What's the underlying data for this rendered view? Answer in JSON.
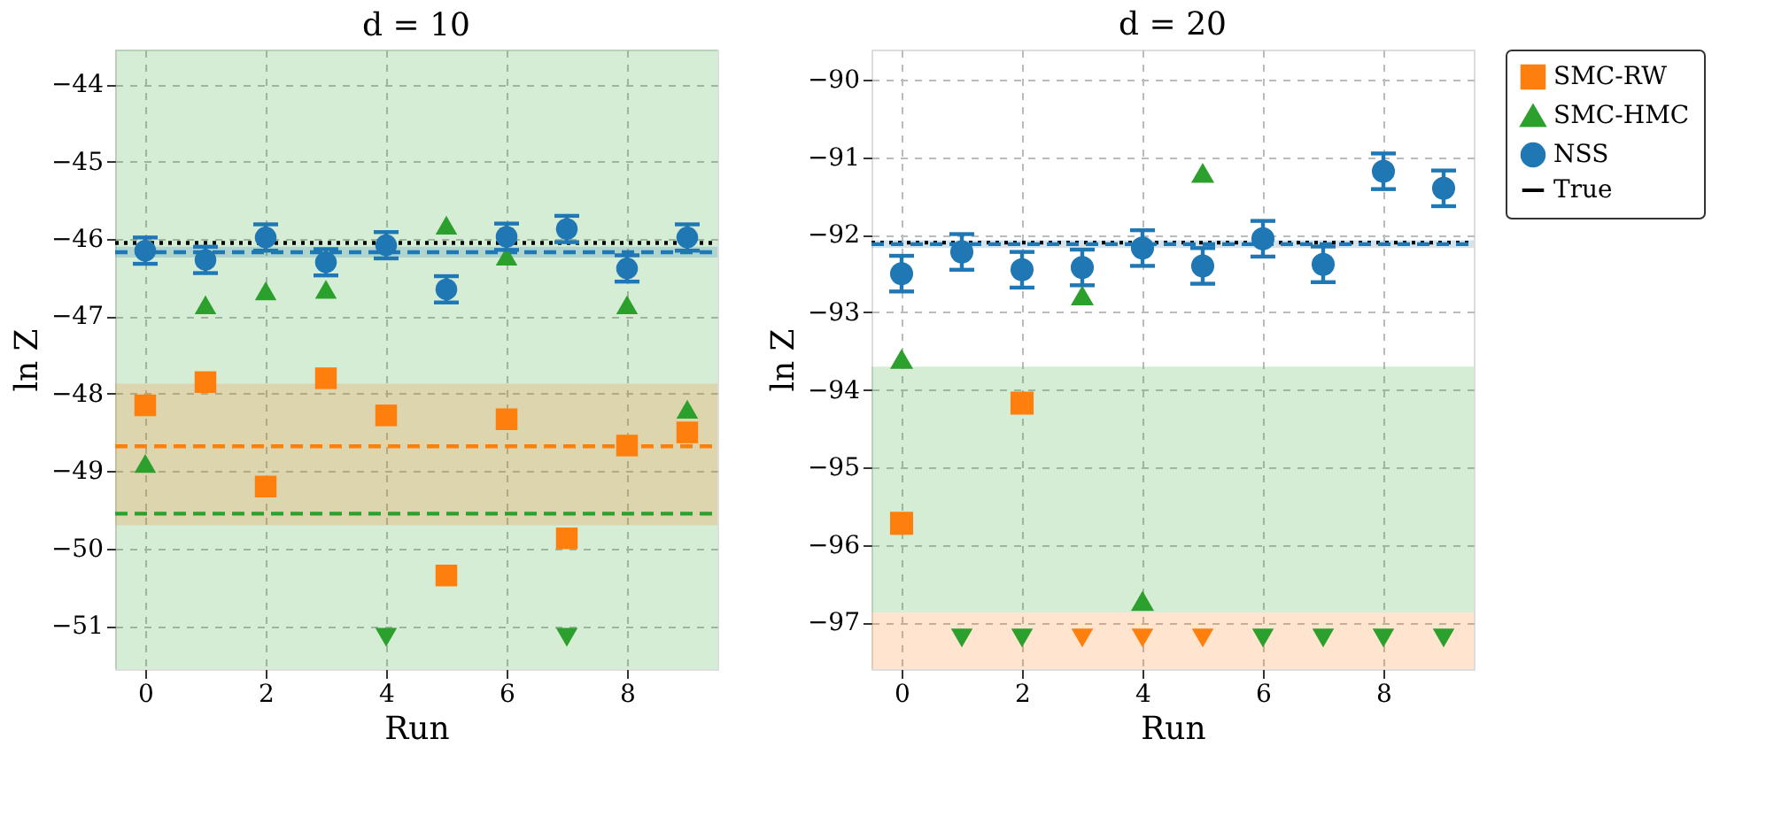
{
  "chart_data": [
    {
      "type": "scatter",
      "title": "d = 10",
      "xlabel": "Run",
      "ylabel": "ln Z",
      "x": [
        0,
        1,
        2,
        3,
        4,
        5,
        6,
        7,
        8,
        9
      ],
      "xlim": [
        -0.5,
        9.5
      ],
      "xticks": [
        0,
        2,
        4,
        6,
        8
      ],
      "ylim": [
        -51.56,
        -43.55
      ],
      "yticks": [
        -51,
        -50,
        -49,
        -48,
        -47,
        -46,
        -45,
        -44
      ],
      "grid": true,
      "legend": false,
      "series": [
        {
          "color": "#ff7f0e",
          "marker": "square",
          "values": [
            -48.15,
            -47.85,
            -49.2,
            -47.8,
            -48.28,
            -50.35,
            -48.33,
            -49.87,
            -48.67,
            -48.5
          ]
        },
        {
          "color": "#2ca02c",
          "marker": "triangle",
          "values": [
            -48.9,
            -46.85,
            -46.67,
            -46.65,
            null,
            -45.82,
            -46.22,
            null,
            -46.85,
            -48.2
          ]
        },
        {
          "color": "#2ca02c",
          "marker": "triangle-down",
          "values": [
            null,
            null,
            null,
            null,
            -51.15,
            null,
            null,
            -51.15,
            null,
            null
          ]
        },
        {
          "color": "#1f77b4",
          "marker": "circle",
          "values": [
            -46.15,
            -46.27,
            -45.98,
            -46.3,
            -46.08,
            -46.65,
            -45.97,
            -45.87,
            -46.38,
            -45.98
          ],
          "errors": [
            0.17,
            0.17,
            0.17,
            0.17,
            0.17,
            0.17,
            0.17,
            0.17,
            0.17,
            0.17
          ]
        }
      ],
      "ref_lines": [
        {
          "axis": "y",
          "value": -46.05,
          "color": "#000000",
          "line_style": "dotted"
        },
        {
          "axis": "y",
          "value": -46.17,
          "color": "#1f77b4",
          "line_style": "dashed"
        },
        {
          "axis": "y",
          "value": -48.68,
          "color": "#ff7f0e",
          "line_style": "dashed"
        },
        {
          "axis": "y",
          "value": -49.55,
          "color": "#2ca02c",
          "line_style": "dashed"
        }
      ],
      "bands": [
        {
          "axis": "y",
          "from": -51.56,
          "to": -43.55,
          "color": "#2ca02c"
        },
        {
          "axis": "y",
          "from": -49.7,
          "to": -47.87,
          "color": "#ff7f0e"
        },
        {
          "axis": "y",
          "from": -46.24,
          "to": -46.1,
          "color": "#1f77b4"
        }
      ]
    },
    {
      "type": "scatter",
      "title": "d = 20",
      "xlabel": "Run",
      "ylabel": "ln Z",
      "x": [
        0,
        1,
        2,
        3,
        4,
        5,
        6,
        7,
        8,
        9
      ],
      "xlim": [
        -0.5,
        9.5
      ],
      "xticks": [
        0,
        2,
        4,
        6,
        8
      ],
      "ylim": [
        -97.6,
        -89.61
      ],
      "yticks": [
        -97,
        -96,
        -95,
        -94,
        -93,
        -92,
        -91,
        -90
      ],
      "grid": true,
      "legend": "right",
      "series": [
        {
          "name": "SMC-RW",
          "color": "#ff7f0e",
          "marker": "square",
          "values": [
            -95.72,
            null,
            -94.17,
            null,
            null,
            null,
            null,
            null,
            null,
            null
          ]
        },
        {
          "name": "SMC-HMC",
          "color": "#2ca02c",
          "marker": "triangle",
          "values": [
            -93.6,
            null,
            null,
            -92.78,
            -96.72,
            -91.2,
            null,
            null,
            null,
            null
          ]
        },
        {
          "color": "#2ca02c",
          "marker": "triangle-down",
          "values": [
            null,
            -97.2,
            -97.2,
            null,
            null,
            null,
            -97.2,
            -97.2,
            -97.2,
            -97.2
          ]
        },
        {
          "color": "#ff7f0e",
          "marker": "triangle-down",
          "values": [
            null,
            null,
            null,
            -97.2,
            -97.2,
            -97.2,
            null,
            null,
            null,
            null
          ]
        },
        {
          "name": "NSS",
          "color": "#1f77b4",
          "marker": "circle",
          "values": [
            -92.5,
            -92.22,
            -92.45,
            -92.42,
            -92.17,
            -92.4,
            -92.05,
            -92.38,
            -91.18,
            -91.4
          ],
          "errors": [
            0.23,
            0.23,
            0.23,
            0.23,
            0.23,
            0.23,
            0.23,
            0.23,
            0.23,
            0.23
          ]
        }
      ],
      "ref_lines": [
        {
          "axis": "y",
          "value": -92.1,
          "label": "True",
          "color": "#000000",
          "line_style": "dotted"
        },
        {
          "axis": "y",
          "value": -92.12,
          "color": "#1f77b4",
          "line_style": "dashed"
        }
      ],
      "bands": [
        {
          "axis": "y",
          "from": -96.87,
          "to": -93.7,
          "color": "#2ca02c"
        },
        {
          "axis": "y",
          "from": -97.6,
          "to": -96.87,
          "color": "#ff7f0e"
        },
        {
          "axis": "y",
          "from": -92.17,
          "to": -92.07,
          "color": "#1f77b4"
        }
      ]
    }
  ]
}
